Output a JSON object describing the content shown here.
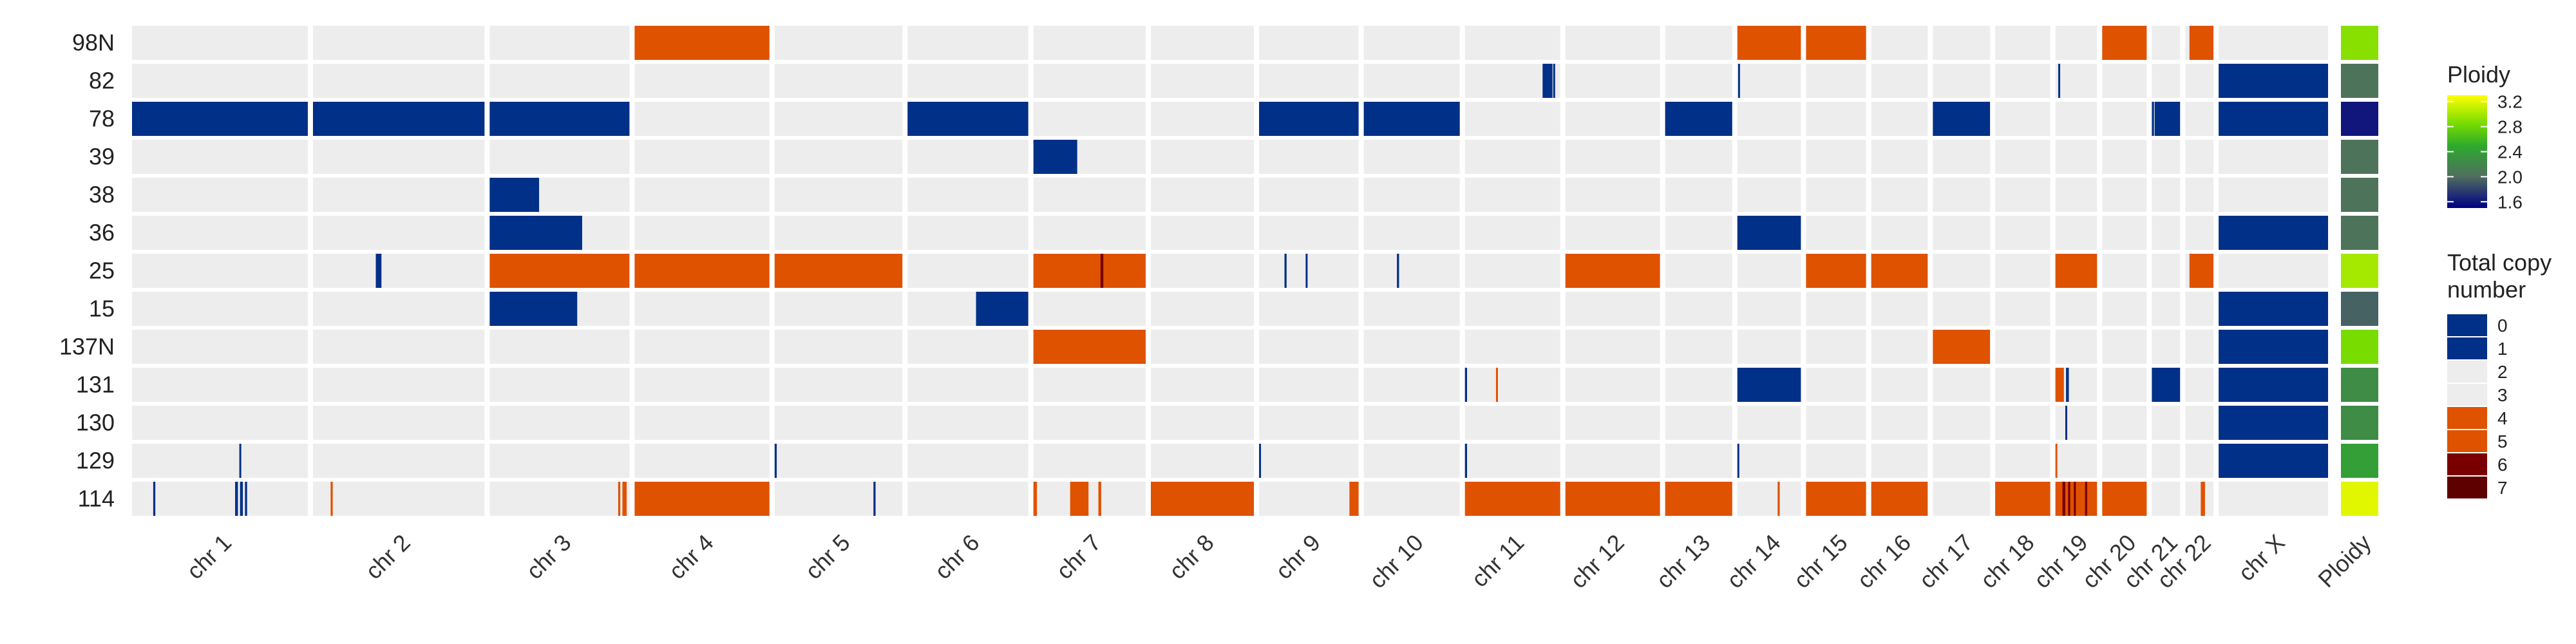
{
  "chart_data": {
    "type": "heatmap",
    "samples": [
      "98N",
      "82",
      "78",
      "39",
      "38",
      "36",
      "25",
      "15",
      "137N",
      "131",
      "130",
      "129",
      "114"
    ],
    "chromosomes": [
      {
        "name": "chr 1",
        "label": "chr 1",
        "length": 249
      },
      {
        "name": "chr 2",
        "label": "chr 2",
        "length": 243
      },
      {
        "name": "chr 3",
        "label": "chr 3",
        "length": 198
      },
      {
        "name": "chr 4",
        "label": "chr 4",
        "length": 191
      },
      {
        "name": "chr 5",
        "label": "chr 5",
        "length": 181
      },
      {
        "name": "chr 6",
        "label": "chr 6",
        "length": 171
      },
      {
        "name": "chr 7",
        "label": "chr 7",
        "length": 159
      },
      {
        "name": "chr 8",
        "label": "chr 8",
        "length": 146
      },
      {
        "name": "chr 9",
        "label": "chr 9",
        "length": 141
      },
      {
        "name": "chr 10",
        "label": "chr 10",
        "length": 136
      },
      {
        "name": "chr 11",
        "label": "chr 11",
        "length": 135
      },
      {
        "name": "chr 12",
        "label": "chr 12",
        "length": 134
      },
      {
        "name": "chr 13",
        "label": "chr 13",
        "length": 95
      },
      {
        "name": "chr 14",
        "label": "chr 14",
        "length": 90
      },
      {
        "name": "chr 15",
        "label": "chr 15",
        "length": 85
      },
      {
        "name": "chr 16",
        "label": "chr 16",
        "length": 80
      },
      {
        "name": "chr 17",
        "label": "chr 17",
        "length": 81
      },
      {
        "name": "chr 18",
        "label": "chr 18",
        "length": 78
      },
      {
        "name": "chr 19",
        "label": "chr 19",
        "length": 59
      },
      {
        "name": "chr 20",
        "label": "chr 20",
        "length": 63
      },
      {
        "name": "chr 21",
        "label": "chr 21",
        "length": 40
      },
      {
        "name": "chr 22",
        "label": "chr 22",
        "length": 40
      },
      {
        "name": "chr X",
        "label": "chr X",
        "length": 155
      }
    ],
    "default_copy_number": 2,
    "segments": [
      {
        "sample": "98N",
        "chr": "chr 4",
        "start": 0,
        "end": 191,
        "cn": 4
      },
      {
        "sample": "98N",
        "chr": "chr 14",
        "start": 0,
        "end": 90,
        "cn": 4
      },
      {
        "sample": "98N",
        "chr": "chr 15",
        "start": 0,
        "end": 85,
        "cn": 4
      },
      {
        "sample": "98N",
        "chr": "chr 20",
        "start": 0,
        "end": 63,
        "cn": 4
      },
      {
        "sample": "98N",
        "chr": "chr 22",
        "start": 6,
        "end": 40,
        "cn": 4
      },
      {
        "sample": "82",
        "chr": "chr 11",
        "start": 110,
        "end": 124,
        "cn": 1
      },
      {
        "sample": "82",
        "chr": "chr 11",
        "start": 125,
        "end": 127,
        "cn": 1
      },
      {
        "sample": "82",
        "chr": "chr 14",
        "start": 1,
        "end": 3,
        "cn": 1
      },
      {
        "sample": "82",
        "chr": "chr 19",
        "start": 4,
        "end": 6,
        "cn": 1
      },
      {
        "sample": "82",
        "chr": "chr X",
        "start": 0,
        "end": 155,
        "cn": 1
      },
      {
        "sample": "78",
        "chr": "chr 1",
        "start": 0,
        "end": 249,
        "cn": 1
      },
      {
        "sample": "78",
        "chr": "chr 2",
        "start": 0,
        "end": 243,
        "cn": 1
      },
      {
        "sample": "78",
        "chr": "chr 3",
        "start": 0,
        "end": 198,
        "cn": 1
      },
      {
        "sample": "78",
        "chr": "chr 6",
        "start": 0,
        "end": 171,
        "cn": 1
      },
      {
        "sample": "78",
        "chr": "chr 9",
        "start": 0,
        "end": 141,
        "cn": 1
      },
      {
        "sample": "78",
        "chr": "chr 10",
        "start": 0,
        "end": 136,
        "cn": 1
      },
      {
        "sample": "78",
        "chr": "chr 13",
        "start": 0,
        "end": 95,
        "cn": 1
      },
      {
        "sample": "78",
        "chr": "chr 17",
        "start": 0,
        "end": 81,
        "cn": 1
      },
      {
        "sample": "78",
        "chr": "chr 21",
        "start": 0,
        "end": 3,
        "cn": 1
      },
      {
        "sample": "78",
        "chr": "chr 21",
        "start": 4,
        "end": 40,
        "cn": 1
      },
      {
        "sample": "78",
        "chr": "chr X",
        "start": 0,
        "end": 155,
        "cn": 1
      },
      {
        "sample": "39",
        "chr": "chr 7",
        "start": 0,
        "end": 62,
        "cn": 1
      },
      {
        "sample": "38",
        "chr": "chr 3",
        "start": 0,
        "end": 70,
        "cn": 1
      },
      {
        "sample": "36",
        "chr": "chr 3",
        "start": 0,
        "end": 131,
        "cn": 1
      },
      {
        "sample": "36",
        "chr": "chr 14",
        "start": 0,
        "end": 90,
        "cn": 1
      },
      {
        "sample": "36",
        "chr": "chr X",
        "start": 0,
        "end": 155,
        "cn": 1
      },
      {
        "sample": "25",
        "chr": "chr 2",
        "start": 89,
        "end": 97,
        "cn": 1
      },
      {
        "sample": "25",
        "chr": "chr 3",
        "start": 0,
        "end": 198,
        "cn": 4
      },
      {
        "sample": "25",
        "chr": "chr 4",
        "start": 0,
        "end": 191,
        "cn": 4
      },
      {
        "sample": "25",
        "chr": "chr 5",
        "start": 0,
        "end": 181,
        "cn": 4
      },
      {
        "sample": "25",
        "chr": "chr 7",
        "start": 0,
        "end": 159,
        "cn": 4
      },
      {
        "sample": "25",
        "chr": "chr 7",
        "start": 95,
        "end": 99,
        "cn": 6
      },
      {
        "sample": "25",
        "chr": "chr 9",
        "start": 36,
        "end": 39,
        "cn": 1
      },
      {
        "sample": "25",
        "chr": "chr 9",
        "start": 66,
        "end": 68,
        "cn": 1
      },
      {
        "sample": "25",
        "chr": "chr 10",
        "start": 47,
        "end": 50,
        "cn": 1
      },
      {
        "sample": "25",
        "chr": "chr 12",
        "start": 0,
        "end": 134,
        "cn": 4
      },
      {
        "sample": "25",
        "chr": "chr 15",
        "start": 0,
        "end": 85,
        "cn": 4
      },
      {
        "sample": "25",
        "chr": "chr 16",
        "start": 0,
        "end": 80,
        "cn": 4
      },
      {
        "sample": "25",
        "chr": "chr 19",
        "start": 0,
        "end": 59,
        "cn": 4
      },
      {
        "sample": "25",
        "chr": "chr 22",
        "start": 6,
        "end": 40,
        "cn": 4
      },
      {
        "sample": "15",
        "chr": "chr 3",
        "start": 0,
        "end": 124,
        "cn": 1
      },
      {
        "sample": "15",
        "chr": "chr 6",
        "start": 97,
        "end": 171,
        "cn": 1
      },
      {
        "sample": "15",
        "chr": "chr X",
        "start": 0,
        "end": 155,
        "cn": 1
      },
      {
        "sample": "137N",
        "chr": "chr 7",
        "start": 0,
        "end": 159,
        "cn": 4
      },
      {
        "sample": "137N",
        "chr": "chr 17",
        "start": 0,
        "end": 81,
        "cn": 4
      },
      {
        "sample": "137N",
        "chr": "chr X",
        "start": 0,
        "end": 155,
        "cn": 1
      },
      {
        "sample": "131",
        "chr": "chr 11",
        "start": 0,
        "end": 3,
        "cn": 1
      },
      {
        "sample": "131",
        "chr": "chr 11",
        "start": 44,
        "end": 46,
        "cn": 4
      },
      {
        "sample": "131",
        "chr": "chr 14",
        "start": 0,
        "end": 90,
        "cn": 1
      },
      {
        "sample": "131",
        "chr": "chr 19",
        "start": 0,
        "end": 12,
        "cn": 4
      },
      {
        "sample": "131",
        "chr": "chr 19",
        "start": 15,
        "end": 19,
        "cn": 1
      },
      {
        "sample": "131",
        "chr": "chr 21",
        "start": 0,
        "end": 40,
        "cn": 1
      },
      {
        "sample": "131",
        "chr": "chr X",
        "start": 0,
        "end": 155,
        "cn": 1
      },
      {
        "sample": "130",
        "chr": "chr 19",
        "start": 14,
        "end": 15,
        "cn": 1
      },
      {
        "sample": "130",
        "chr": "chr X",
        "start": 0,
        "end": 155,
        "cn": 1
      },
      {
        "sample": "129",
        "chr": "chr 1",
        "start": 152,
        "end": 154,
        "cn": 1
      },
      {
        "sample": "129",
        "chr": "chr 5",
        "start": 0,
        "end": 3,
        "cn": 1
      },
      {
        "sample": "129",
        "chr": "chr 9",
        "start": 0,
        "end": 2,
        "cn": 1
      },
      {
        "sample": "129",
        "chr": "chr 11",
        "start": 0,
        "end": 3,
        "cn": 1
      },
      {
        "sample": "129",
        "chr": "chr 14",
        "start": 0,
        "end": 2,
        "cn": 1
      },
      {
        "sample": "129",
        "chr": "chr 19",
        "start": 0,
        "end": 2,
        "cn": 4
      },
      {
        "sample": "129",
        "chr": "chr X",
        "start": 0,
        "end": 155,
        "cn": 1
      },
      {
        "sample": "114",
        "chr": "chr 1",
        "start": 30,
        "end": 33,
        "cn": 1
      },
      {
        "sample": "114",
        "chr": "chr 1",
        "start": 146,
        "end": 150,
        "cn": 1
      },
      {
        "sample": "114",
        "chr": "chr 1",
        "start": 153,
        "end": 157,
        "cn": 1
      },
      {
        "sample": "114",
        "chr": "chr 1",
        "start": 160,
        "end": 163,
        "cn": 1
      },
      {
        "sample": "114",
        "chr": "chr 2",
        "start": 25,
        "end": 28,
        "cn": 4
      },
      {
        "sample": "114",
        "chr": "chr 3",
        "start": 182,
        "end": 185,
        "cn": 4
      },
      {
        "sample": "114",
        "chr": "chr 3",
        "start": 188,
        "end": 194,
        "cn": 4
      },
      {
        "sample": "114",
        "chr": "chr 4",
        "start": 0,
        "end": 191,
        "cn": 4
      },
      {
        "sample": "114",
        "chr": "chr 5",
        "start": 140,
        "end": 143,
        "cn": 1
      },
      {
        "sample": "114",
        "chr": "chr 7",
        "start": 0,
        "end": 5,
        "cn": 4
      },
      {
        "sample": "114",
        "chr": "chr 7",
        "start": 52,
        "end": 78,
        "cn": 4
      },
      {
        "sample": "114",
        "chr": "chr 7",
        "start": 92,
        "end": 96,
        "cn": 4
      },
      {
        "sample": "114",
        "chr": "chr 8",
        "start": 0,
        "end": 146,
        "cn": 4
      },
      {
        "sample": "114",
        "chr": "chr 9",
        "start": 128,
        "end": 141,
        "cn": 4
      },
      {
        "sample": "114",
        "chr": "chr 11",
        "start": 0,
        "end": 135,
        "cn": 4
      },
      {
        "sample": "114",
        "chr": "chr 12",
        "start": 0,
        "end": 134,
        "cn": 4
      },
      {
        "sample": "114",
        "chr": "chr 13",
        "start": 0,
        "end": 95,
        "cn": 4
      },
      {
        "sample": "114",
        "chr": "chr 14",
        "start": 57,
        "end": 60,
        "cn": 4
      },
      {
        "sample": "114",
        "chr": "chr 15",
        "start": 0,
        "end": 85,
        "cn": 4
      },
      {
        "sample": "114",
        "chr": "chr 16",
        "start": 0,
        "end": 80,
        "cn": 4
      },
      {
        "sample": "114",
        "chr": "chr 18",
        "start": 0,
        "end": 78,
        "cn": 4
      },
      {
        "sample": "114",
        "chr": "chr 19",
        "start": 0,
        "end": 59,
        "cn": 4
      },
      {
        "sample": "114",
        "chr": "chr 19",
        "start": 10,
        "end": 14,
        "cn": 6
      },
      {
        "sample": "114",
        "chr": "chr 19",
        "start": 18,
        "end": 21,
        "cn": 6
      },
      {
        "sample": "114",
        "chr": "chr 19",
        "start": 26,
        "end": 29,
        "cn": 6
      },
      {
        "sample": "114",
        "chr": "chr 19",
        "start": 42,
        "end": 45,
        "cn": 6
      },
      {
        "sample": "114",
        "chr": "chr 20",
        "start": 0,
        "end": 63,
        "cn": 4
      },
      {
        "sample": "114",
        "chr": "chr 22",
        "start": 22,
        "end": 28,
        "cn": 4
      }
    ],
    "ploidy_column_label": "Ploidy",
    "ploidy": [
      2.9,
      2.05,
      1.6,
      2.05,
      2.05,
      2.05,
      3.0,
      1.95,
      2.85,
      2.25,
      2.25,
      2.4,
      3.2
    ],
    "ploidy_legend": {
      "title": "Ploidy",
      "ticks": [
        "3.2",
        "2.8",
        "2.4",
        "2.0",
        "1.6"
      ],
      "range": [
        1.5,
        3.3
      ]
    },
    "copy_number_legend": {
      "title_lines": [
        "Total copy",
        "number"
      ],
      "entries": [
        {
          "label": "0",
          "color": "#003087"
        },
        {
          "label": "1",
          "color": "#003087"
        },
        {
          "label": "2",
          "color": "#ededed"
        },
        {
          "label": "3",
          "color": "#ededed"
        },
        {
          "label": "4",
          "color": "#df5200"
        },
        {
          "label": "5",
          "color": "#df5200"
        },
        {
          "label": "6",
          "color": "#7a0000"
        },
        {
          "label": "7",
          "color": "#5e0000"
        }
      ]
    },
    "colors": {
      "background": "#ededed",
      "loss": "#003087",
      "gain": "#df5200",
      "amp": "#7a0000",
      "high_amp": "#5e0000",
      "neutral": "#ededed"
    }
  }
}
